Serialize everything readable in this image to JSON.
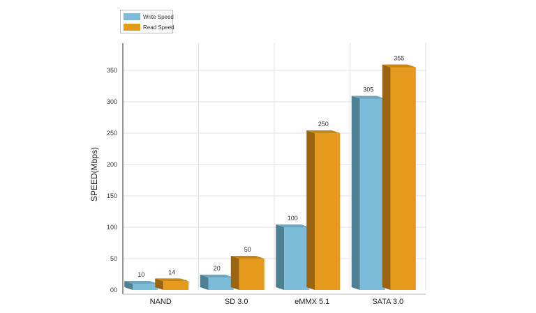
{
  "chart_data": {
    "type": "bar",
    "categories": [
      "NAND",
      "SD 3.0",
      "eMMX 5.1",
      "SATA 3.0"
    ],
    "series": [
      {
        "name": "Write Speed",
        "values": [
          10,
          20,
          100,
          305
        ]
      },
      {
        "name": "Read Speed",
        "values": [
          14,
          50,
          250,
          355
        ]
      }
    ],
    "title": "",
    "xlabel": "",
    "ylabel": "SPEED(Mbps)",
    "ylim": [
      0,
      370
    ],
    "yticks": [
      0,
      50,
      100,
      150,
      200,
      250,
      300,
      350
    ],
    "ytick_labels": [
      "00",
      "50",
      "100",
      "150",
      "200",
      "250",
      "300",
      "350"
    ],
    "grid": true,
    "legend_position": "top-left",
    "style": "3d-bars"
  },
  "colors": {
    "write_front": "#7bbcd9",
    "write_side": "#4f7f93",
    "write_top": "#6ea6bf",
    "read_front": "#e59a1e",
    "read_side": "#9c6410",
    "read_top": "#c98618",
    "grid": "#e2e2e2",
    "axis": "#333333"
  }
}
